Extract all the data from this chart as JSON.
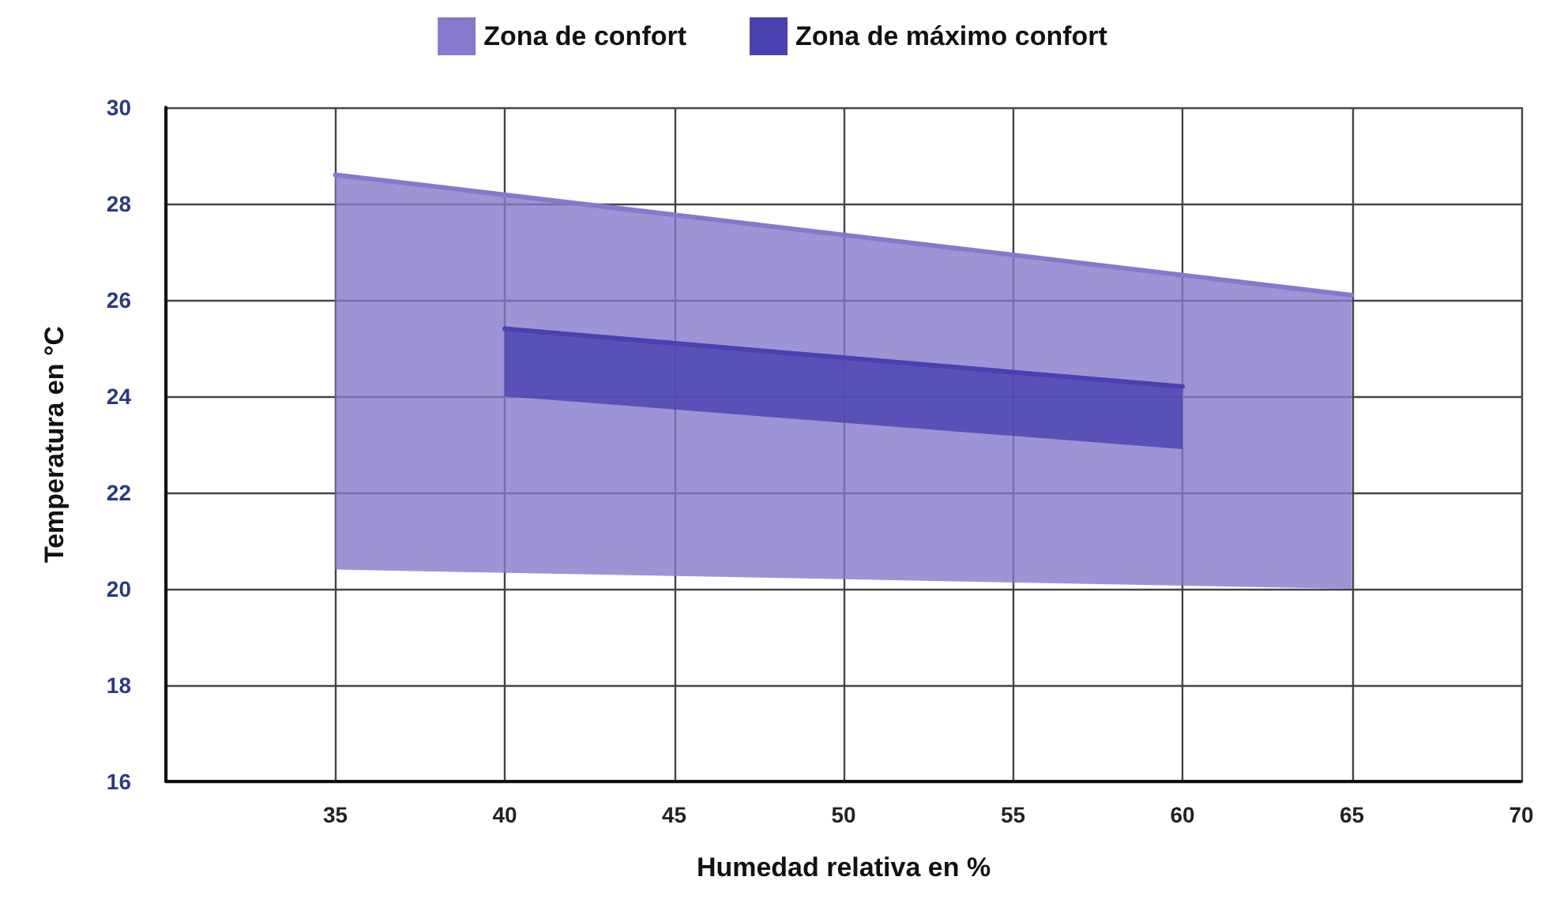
{
  "chart_data": {
    "type": "line",
    "xlabel": "Humedad relativa en %",
    "ylabel": "Temperatura en °C",
    "xlim": [
      30,
      70
    ],
    "xticks": [
      35,
      40,
      45,
      50,
      55,
      60,
      65,
      70
    ],
    "ylim": [
      16,
      30
    ],
    "yticks": [
      16,
      18,
      20,
      22,
      24,
      26,
      28,
      30
    ],
    "grid": true,
    "legend": "top",
    "series": [
      {
        "name": "Zona de confort",
        "color": "#8479cc",
        "x": [
          35,
          65
        ],
        "values": [
          28.6,
          26.1
        ],
        "upper": [
          28.6,
          26.1
        ],
        "lower": [
          20.4,
          20.0
        ]
      },
      {
        "name": "Zona de máximo confort",
        "color": "#4a40b0",
        "x": [
          40,
          60
        ],
        "values": [
          25.4,
          24.2
        ],
        "upper": [
          25.4,
          24.2
        ],
        "lower": [
          24.0,
          22.9
        ]
      }
    ]
  }
}
